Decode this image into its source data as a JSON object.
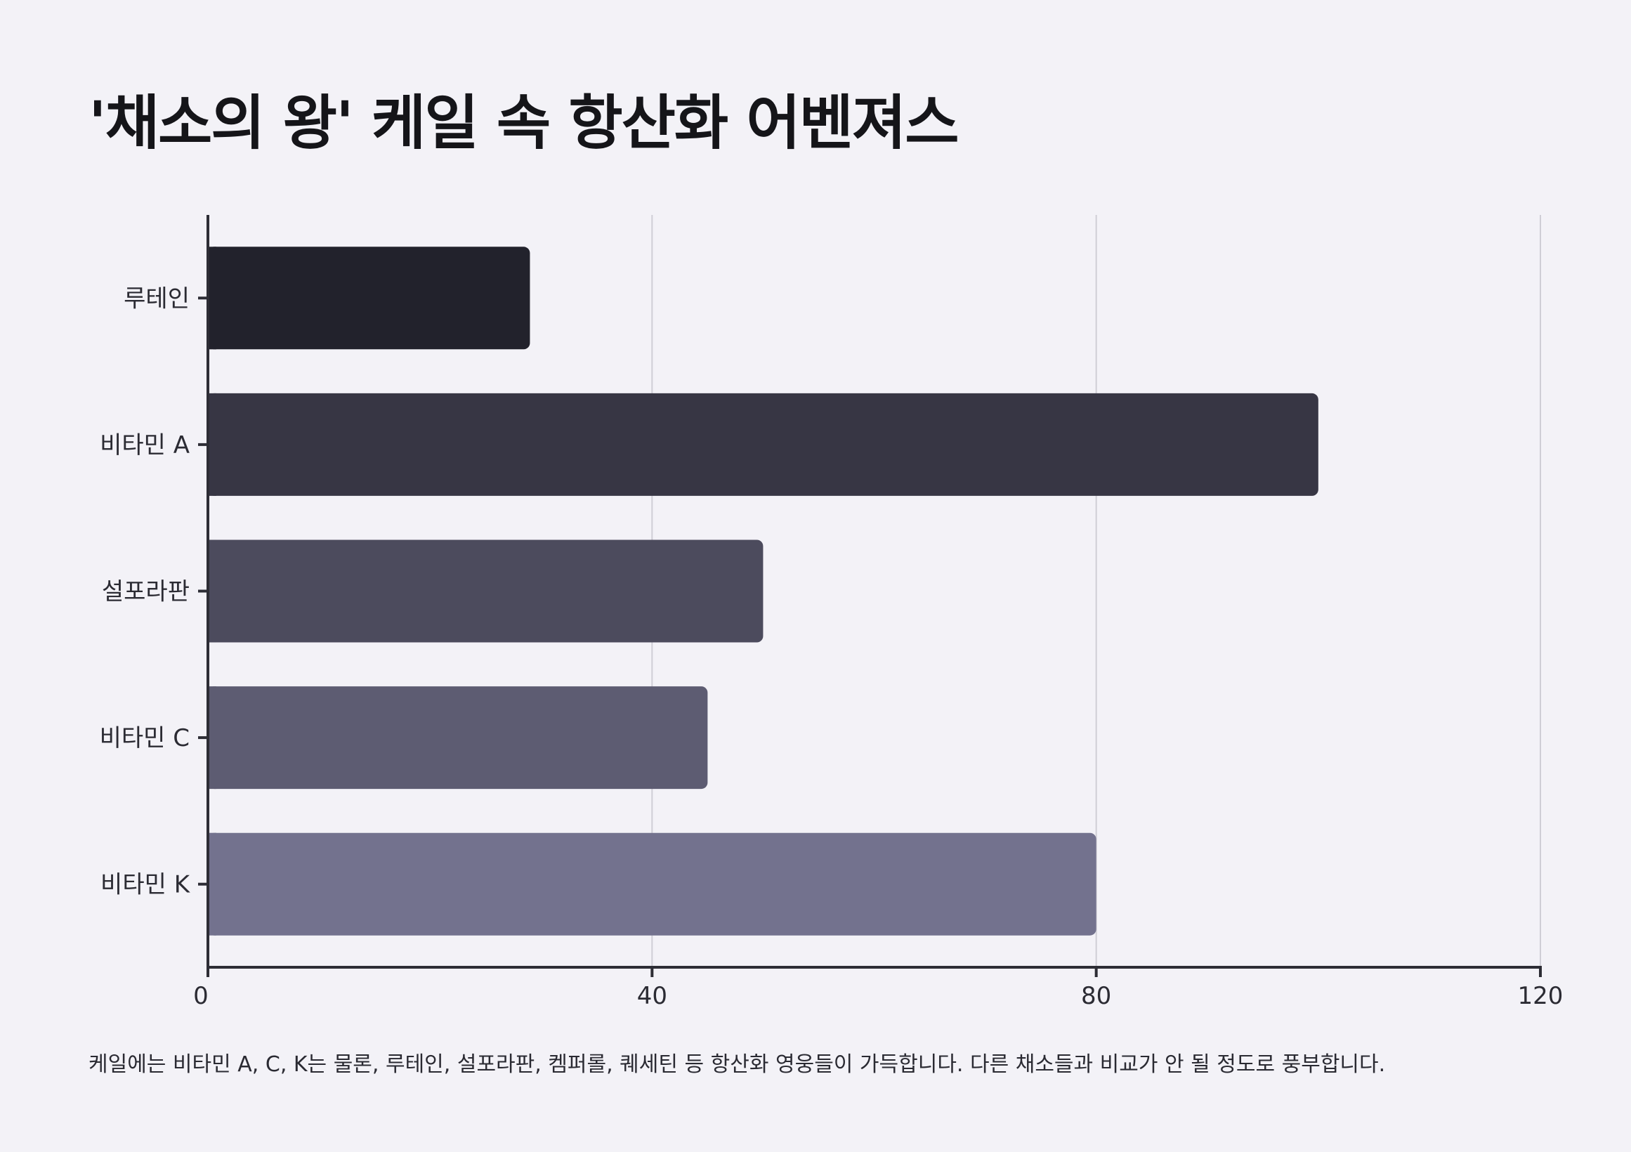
{
  "chart_data": {
    "type": "bar",
    "orientation": "horizontal",
    "title": "'채소의 왕' 케일 속 항산화 어벤져스",
    "categories": [
      "루테인",
      "비타민 A",
      "설포라판",
      "비타민 C",
      "비타민 K"
    ],
    "values": [
      29,
      100,
      50,
      45,
      80
    ],
    "colors": [
      "#22222c",
      "#373644",
      "#4c4b5d",
      "#5d5c72",
      "#73728e"
    ],
    "xlim": [
      0,
      120
    ],
    "xticks": [
      0,
      40,
      80,
      120
    ],
    "xlabel": "",
    "ylabel": "",
    "grid": "vertical",
    "legend": "none",
    "note": "케일에는 비타민 A, C, K는 물론, 루테인, 설포라판, 켐퍼롤, 퀘세틴 등 항산화 영웅들이 가득합니다. 다른 채소들과 비교가 안 될 정도로 풍부합니다."
  }
}
